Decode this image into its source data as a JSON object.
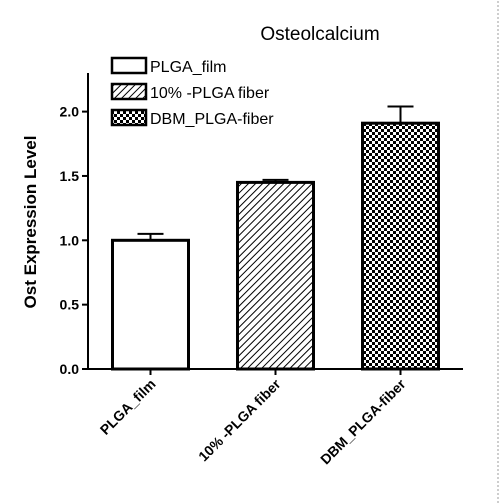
{
  "chart_data": {
    "type": "bar",
    "title": "Osteolcalcium",
    "ylabel": "Ost Expression Level",
    "xlabel": "",
    "categories": [
      "PLGA_film",
      "10% -PLGA fiber",
      "DBM_PLGA-fiber"
    ],
    "values": [
      1.0,
      1.45,
      1.91
    ],
    "errors": [
      0.05,
      0.02,
      0.13
    ],
    "ylim": [
      0,
      2.3
    ],
    "yticks": [
      "0.0",
      "0.5",
      "1.0",
      "1.5",
      "2.0"
    ],
    "fills": [
      "white",
      "diagonal-hatch",
      "checkerboard"
    ],
    "legend": [
      "PLGA_film",
      "10% -PLGA fiber",
      "DBM_PLGA-fiber"
    ],
    "legend_position": "top-left",
    "grid": false
  }
}
